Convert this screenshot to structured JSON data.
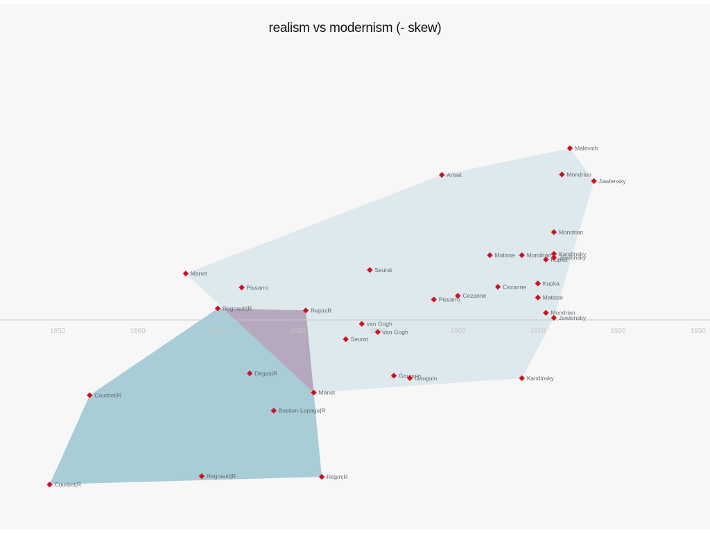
{
  "chart_data": {
    "type": "scatter",
    "title": "realism vs modernism (- skew)",
    "xlabel": "",
    "ylabel": "",
    "xlim": [
      1842.8,
      1931.5
    ],
    "ylim": [
      -1.3,
      1.2
    ],
    "x_ticks": [
      1850,
      1860,
      1870,
      1880,
      1890,
      1900,
      1910,
      1920,
      1930
    ],
    "grid": false,
    "colors": {
      "marker": "#d0101e",
      "realism_hull": "#a9cdd6",
      "modernism_hull": "#dde9ed",
      "overlap": "#b6a8bd",
      "axis": "#c8c8c8"
    },
    "series": [
      {
        "points": [
          {
            "x": 1849,
            "y": -1.248,
            "label": "Courbet|R"
          },
          {
            "x": 1854,
            "y": -0.571,
            "label": "Courbet|R"
          },
          {
            "x": 1868,
            "y": -1.185,
            "label": "Regnault|R"
          },
          {
            "x": 1870,
            "y": 0.087,
            "label": "Regnault|R"
          },
          {
            "x": 1874,
            "y": -0.405,
            "label": "Degas|R"
          },
          {
            "x": 1877,
            "y": -0.688,
            "label": "Bastien-Lepage|R"
          },
          {
            "x": 1881,
            "y": 0.072,
            "label": "Repin|R"
          },
          {
            "x": 1883,
            "y": -1.19,
            "label": "Repin|R"
          }
        ]
      },
      {
        "points": [
          {
            "x": 1866,
            "y": 0.352,
            "label": "Manet"
          },
          {
            "x": 1882,
            "y": -0.551,
            "label": "Manet"
          },
          {
            "x": 1873,
            "y": 0.246,
            "label": "Pissarro"
          },
          {
            "x": 1897,
            "y": 0.155,
            "label": "Pissarro"
          },
          {
            "x": 1886,
            "y": -0.146,
            "label": "Seurat"
          },
          {
            "x": 1889,
            "y": 0.379,
            "label": "Seurat"
          },
          {
            "x": 1888,
            "y": -0.03,
            "label": "van Gogh"
          },
          {
            "x": 1890,
            "y": -0.092,
            "label": "van Gogh"
          },
          {
            "x": 1892,
            "y": -0.423,
            "label": "Gauguin"
          },
          {
            "x": 1894,
            "y": -0.441,
            "label": "Gauguin"
          },
          {
            "x": 1898,
            "y": 1.1,
            "label": "Amiet"
          },
          {
            "x": 1900,
            "y": 0.183,
            "label": "Cezanne"
          },
          {
            "x": 1905,
            "y": 0.251,
            "label": "Cezanne"
          },
          {
            "x": 1904,
            "y": 0.491,
            "label": "Matisse"
          },
          {
            "x": 1910,
            "y": 0.17,
            "label": "Matisse"
          },
          {
            "x": 1908,
            "y": 0.491,
            "label": "Mondrian"
          },
          {
            "x": 1911,
            "y": 0.054,
            "label": "Mondrian"
          },
          {
            "x": 1912,
            "y": 0.666,
            "label": "Mondrian"
          },
          {
            "x": 1913,
            "y": 1.103,
            "label": "Mondrian"
          },
          {
            "x": 1908,
            "y": -0.442,
            "label": "Kandinsky"
          },
          {
            "x": 1912,
            "y": 0.501,
            "label": "Kandinsky"
          },
          {
            "x": 1910,
            "y": 0.277,
            "label": "Kupka"
          },
          {
            "x": 1911,
            "y": 0.458,
            "label": "Kupka"
          },
          {
            "x": 1912,
            "y": 0.473,
            "label": "Jawlensky"
          },
          {
            "x": 1912,
            "y": 0.016,
            "label": "Jawlensky"
          },
          {
            "x": 1917,
            "y": 1.053,
            "label": "Jawlensky"
          },
          {
            "x": 1914,
            "y": 1.302,
            "label": "Malevich"
          }
        ]
      }
    ]
  }
}
